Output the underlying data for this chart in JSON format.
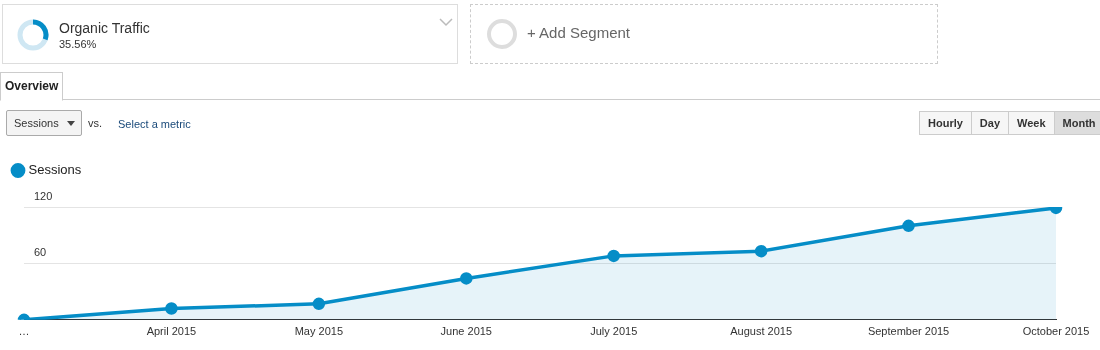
{
  "chart_data": {
    "type": "area",
    "categories": [
      "…",
      "April 2015",
      "May 2015",
      "June 2015",
      "July 2015",
      "August 2015",
      "September 2015",
      "October 2015"
    ],
    "series": [
      {
        "name": "Sessions",
        "color": "#058dc7",
        "values": [
          0,
          12,
          17,
          44,
          68,
          73,
          100,
          119
        ]
      }
    ],
    "ylim": [
      0,
      120
    ],
    "yticks": [
      {
        "value": 0,
        "label": null
      },
      60,
      120
    ],
    "grid": "y",
    "legend": "top left",
    "marker": "circle",
    "line_style": "solid",
    "annotations": [
      "Organic Traffic",
      "35.56%",
      "+ Add Segment",
      "Overview",
      "Sessions",
      "vs.",
      "Select a metric",
      "Hourly",
      "Day",
      "Week",
      "Month"
    ]
  }
}
